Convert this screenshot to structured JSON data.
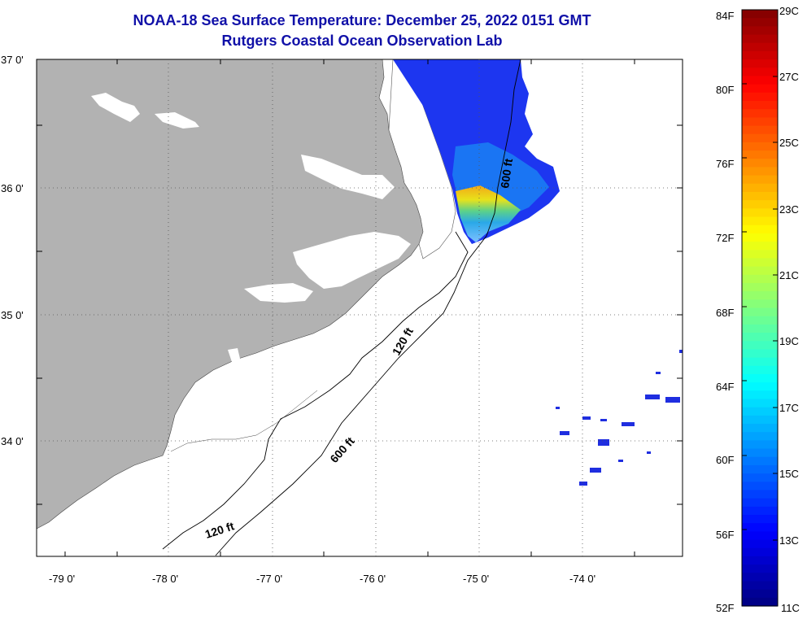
{
  "title": {
    "line1": "NOAA-18 Sea Surface Temperature:  December 25, 2022 0151 GMT",
    "line2": "Rutgers Coastal Ocean Observation Lab"
  },
  "map": {
    "lat_labels": [
      "37 0'",
      "36 0'",
      "35 0'",
      "34 0'"
    ],
    "lon_labels": [
      "-79 0'",
      "-78 0'",
      "-77 0'",
      "-76 0'",
      "-75 0'",
      "-74 0'"
    ],
    "contour_labels": [
      "600 ft",
      "120 ft",
      "600 ft",
      "120 ft"
    ],
    "land_color": "#b2b2b2",
    "frame_color": "#000000"
  },
  "colorbar": {
    "f_labels": [
      "84F",
      "80F",
      "76F",
      "72F",
      "68F",
      "64F",
      "60F",
      "56F",
      "52F"
    ],
    "c_labels": [
      "29C",
      "27C",
      "25C",
      "23C",
      "21C",
      "19C",
      "17C",
      "15C",
      "13C",
      "11C"
    ]
  }
}
